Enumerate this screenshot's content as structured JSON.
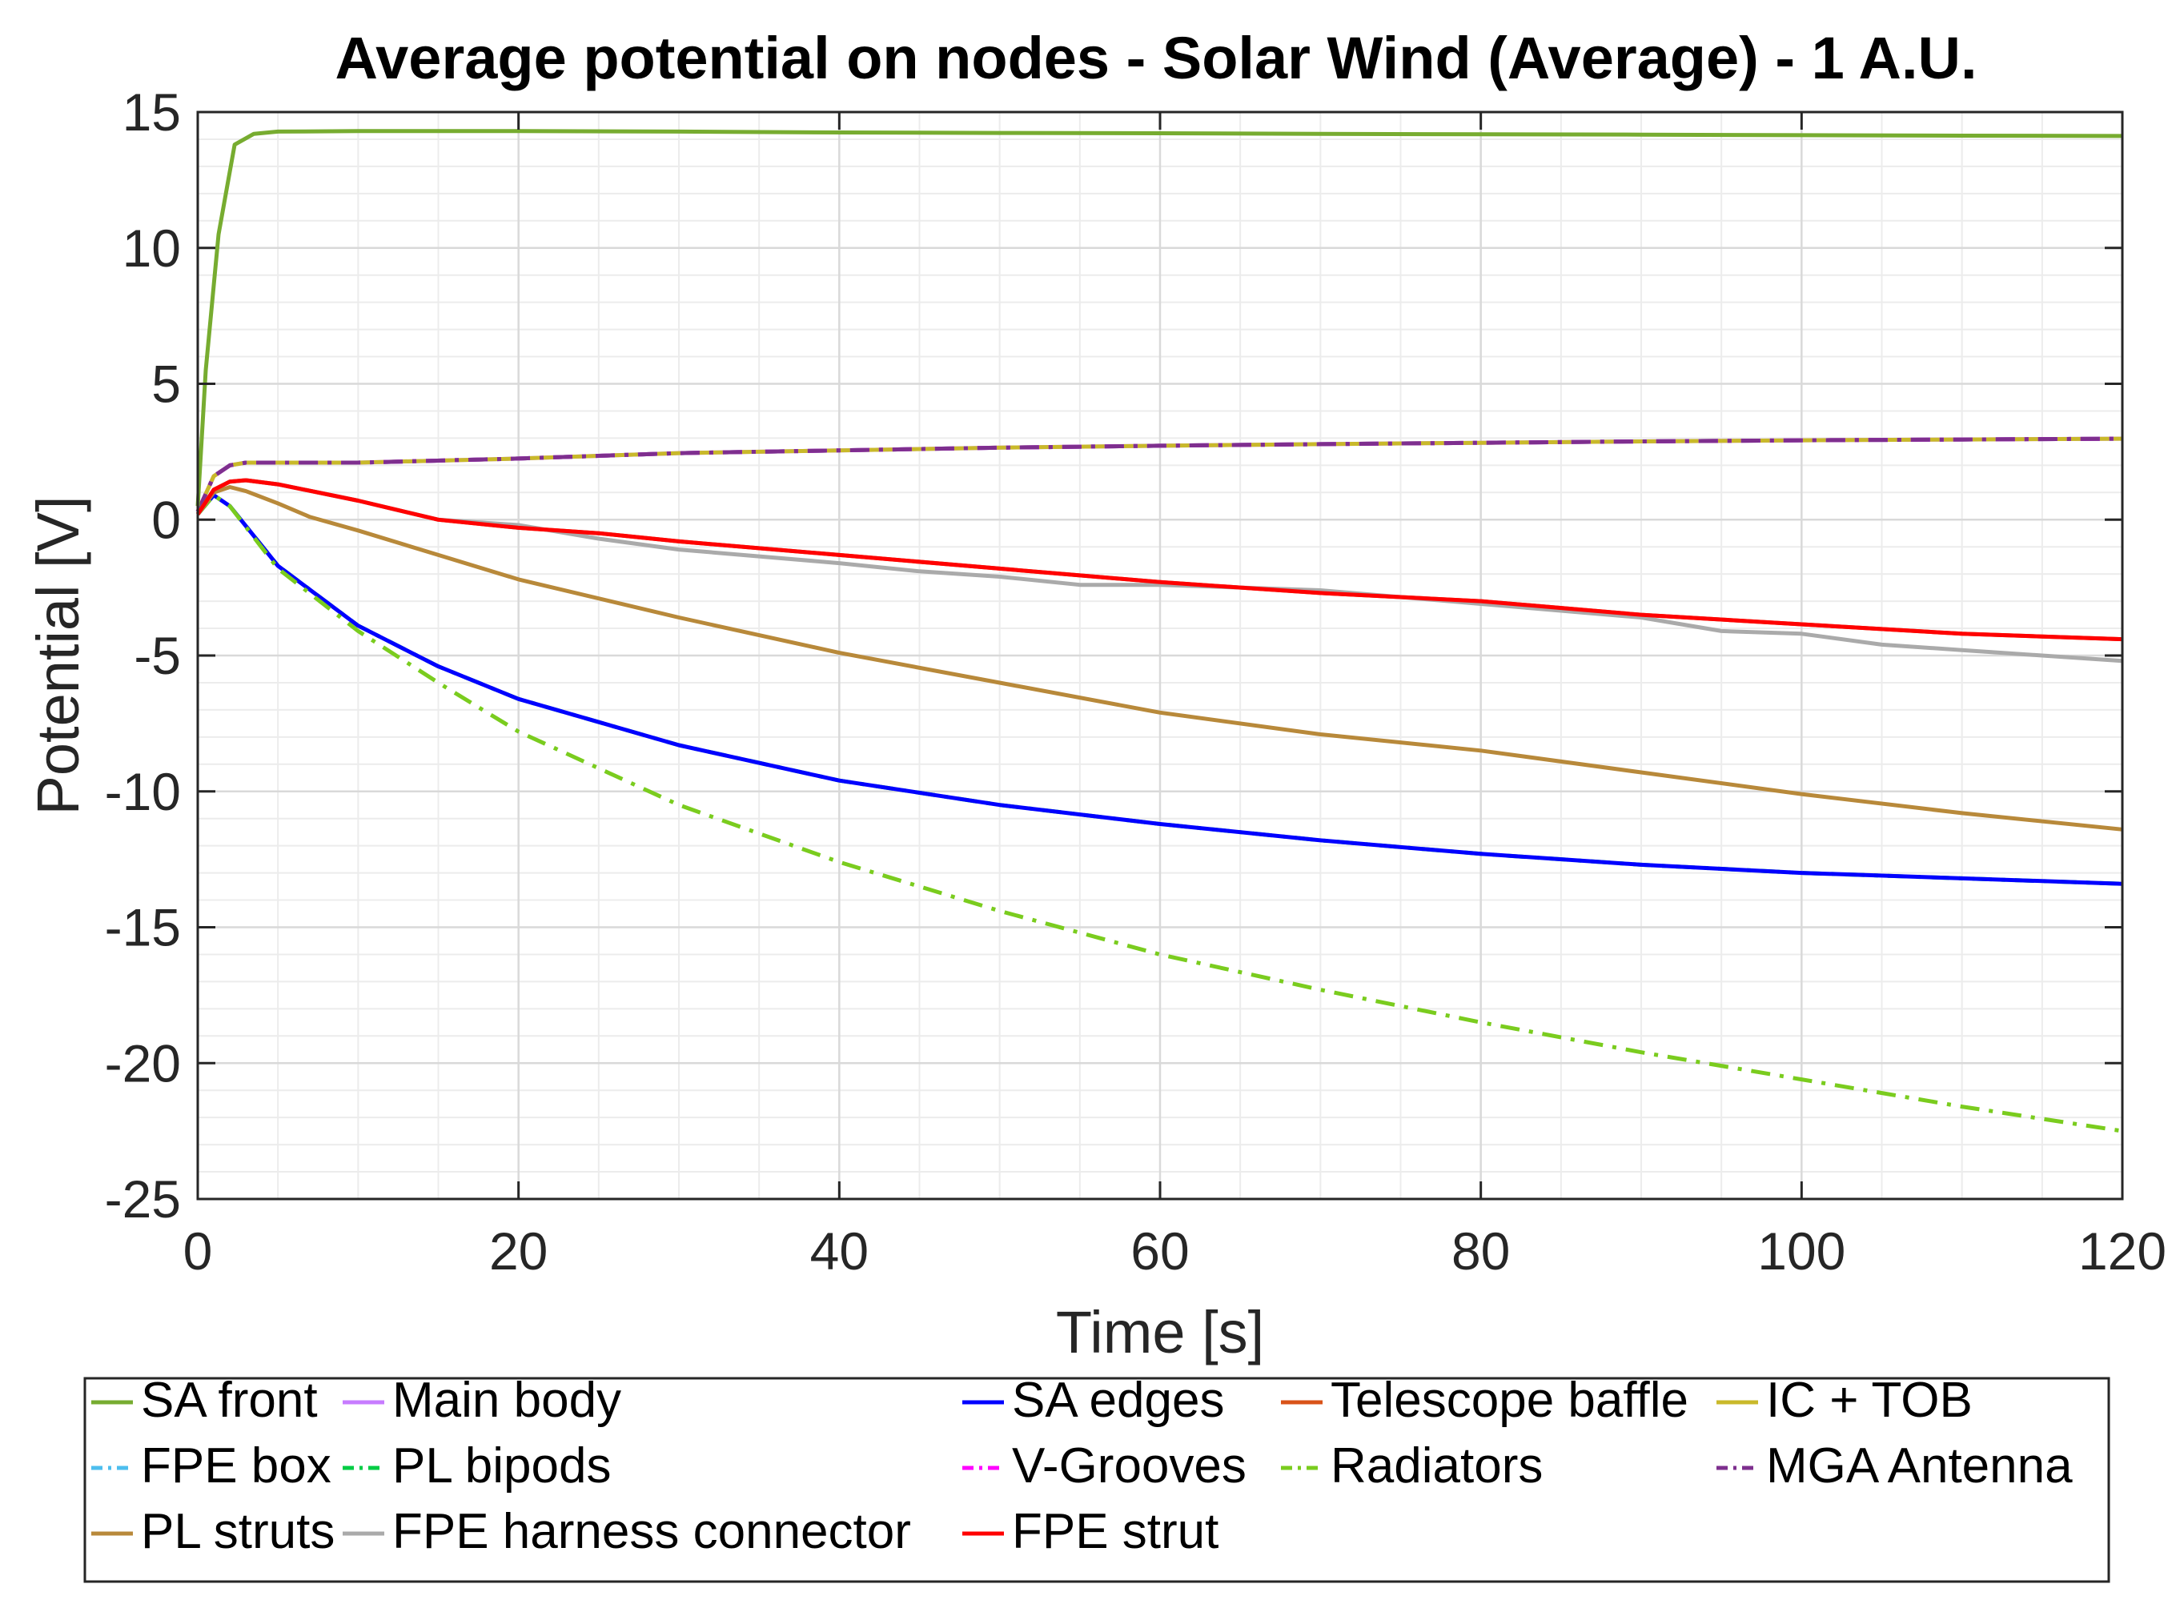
{
  "chart_data": {
    "type": "line",
    "title": "Average potential on nodes - Solar Wind (Average) - 1 A.U.",
    "xlabel": "Time [s]",
    "ylabel": "Potential [V]",
    "xlim": [
      0,
      120
    ],
    "ylim": [
      -25,
      15
    ],
    "xticks": [
      0,
      20,
      40,
      60,
      80,
      100,
      120
    ],
    "xtick_labels": [
      "0",
      "20",
      "40",
      "60",
      "80",
      "100",
      "120"
    ],
    "yticks": [
      15,
      10,
      5,
      0,
      -5,
      -10,
      -15,
      -20,
      -25
    ],
    "ytick_labels": [
      "15",
      "10",
      "5",
      "0",
      "-5",
      "-10",
      "-15",
      "-20",
      "-25"
    ],
    "grid": true,
    "minor_grid": true,
    "legend_position": "below-plot",
    "series": [
      {
        "name": "SA front",
        "color": "#77AC30",
        "dash": "solid",
        "x": [
          0,
          0.5,
          1.3,
          2.3,
          3.5,
          5,
          10,
          20,
          30,
          40,
          50,
          60,
          70,
          80,
          90,
          100,
          110,
          120
        ],
        "y": [
          0.5,
          5.5,
          10.5,
          13.8,
          14.2,
          14.28,
          14.3,
          14.3,
          14.28,
          14.25,
          14.23,
          14.22,
          14.2,
          14.18,
          14.17,
          14.15,
          14.13,
          14.12
        ]
      },
      {
        "name": "Main body",
        "color": "#C77CFF",
        "dash": "solid",
        "x": [
          0,
          1,
          2,
          3,
          5,
          10,
          20,
          30,
          40,
          50,
          60,
          70,
          80,
          90,
          100,
          110,
          120
        ],
        "y": [
          0.3,
          1.6,
          2.0,
          2.1,
          2.1,
          2.1,
          2.25,
          2.45,
          2.55,
          2.65,
          2.72,
          2.78,
          2.83,
          2.88,
          2.92,
          2.95,
          2.98
        ]
      },
      {
        "name": "SA edges",
        "color": "#0000FF",
        "dash": "solid",
        "x": [
          0,
          1,
          2,
          5,
          10,
          15,
          20,
          30,
          40,
          50,
          60,
          70,
          80,
          90,
          100,
          110,
          120
        ],
        "y": [
          0.2,
          0.9,
          0.5,
          -1.7,
          -3.9,
          -5.4,
          -6.6,
          -8.3,
          -9.6,
          -10.5,
          -11.2,
          -11.8,
          -12.3,
          -12.7,
          -13.0,
          -13.2,
          -13.4
        ]
      },
      {
        "name": "Telescope baffle",
        "color": "#D95319",
        "dash": "solid",
        "x": [
          0,
          1,
          2,
          3,
          5,
          10,
          15,
          20,
          25,
          30,
          40,
          50,
          60,
          70,
          80,
          90,
          100,
          110,
          120
        ],
        "y": [
          0.2,
          1.1,
          1.4,
          1.45,
          1.3,
          0.7,
          0.0,
          -0.3,
          -0.5,
          -0.8,
          -1.3,
          -1.8,
          -2.3,
          -2.7,
          -3.0,
          -3.5,
          -3.85,
          -4.2,
          -4.4
        ]
      },
      {
        "name": "IC + TOB",
        "color": "#C9B92A",
        "dash": "solid",
        "x": [
          0,
          1,
          2,
          3,
          5,
          10,
          20,
          30,
          40,
          50,
          60,
          70,
          80,
          90,
          100,
          110,
          120
        ],
        "y": [
          0.3,
          1.6,
          2.0,
          2.1,
          2.1,
          2.1,
          2.25,
          2.45,
          2.55,
          2.65,
          2.72,
          2.78,
          2.83,
          2.88,
          2.92,
          2.95,
          2.98
        ]
      },
      {
        "name": "FPE box",
        "color": "#4DBEEE",
        "dash": "dashdot",
        "x": [
          0,
          1,
          2,
          3,
          5,
          10,
          20,
          30,
          40,
          50,
          60,
          70,
          80,
          90,
          100,
          110,
          120
        ],
        "y": [
          0.3,
          1.6,
          2.0,
          2.1,
          2.1,
          2.1,
          2.25,
          2.45,
          2.55,
          2.65,
          2.72,
          2.78,
          2.83,
          2.88,
          2.92,
          2.95,
          2.98
        ]
      },
      {
        "name": "PL bipods",
        "color": "#00CC44",
        "dash": "dashdot",
        "x": [
          0,
          1,
          2,
          5,
          10,
          15,
          20,
          30,
          40,
          50,
          60,
          70,
          80,
          90,
          100,
          110,
          120
        ],
        "y": [
          0.2,
          0.9,
          0.5,
          -1.7,
          -3.9,
          -5.4,
          -6.6,
          -8.3,
          -9.6,
          -10.5,
          -11.2,
          -11.8,
          -12.3,
          -12.7,
          -13.0,
          -13.2,
          -13.4
        ]
      },
      {
        "name": "V-Grooves",
        "color": "#FF00FF",
        "dash": "dashdot",
        "x": [
          0,
          1,
          2,
          3,
          5,
          10,
          20,
          30,
          40,
          50,
          60,
          70,
          80,
          90,
          100,
          110,
          120
        ],
        "y": [
          0.3,
          1.6,
          2.0,
          2.1,
          2.1,
          2.1,
          2.25,
          2.45,
          2.55,
          2.65,
          2.72,
          2.78,
          2.83,
          2.88,
          2.92,
          2.95,
          2.98
        ]
      },
      {
        "name": "Radiators",
        "color": "#7ACC1E",
        "dash": "dashdot",
        "x": [
          0,
          1,
          2,
          5,
          10,
          15,
          20,
          30,
          40,
          50,
          60,
          70,
          80,
          90,
          100,
          110,
          120
        ],
        "y": [
          0.2,
          0.9,
          0.5,
          -1.8,
          -4.1,
          -6.0,
          -7.8,
          -10.5,
          -12.6,
          -14.4,
          -16.0,
          -17.3,
          -18.5,
          -19.6,
          -20.6,
          -21.6,
          -22.5
        ]
      },
      {
        "name": "MGA Antenna",
        "color": "#7E2F8E",
        "dash": "dashdot",
        "x": [
          0,
          1,
          2,
          3,
          5,
          10,
          20,
          30,
          40,
          50,
          60,
          70,
          80,
          90,
          100,
          110,
          120
        ],
        "y": [
          0.3,
          1.6,
          2.0,
          2.1,
          2.1,
          2.1,
          2.25,
          2.45,
          2.55,
          2.65,
          2.72,
          2.78,
          2.83,
          2.88,
          2.92,
          2.95,
          2.98
        ]
      },
      {
        "name": "PL struts",
        "color": "#B8893A",
        "dash": "solid",
        "x": [
          0,
          1,
          2,
          3,
          5,
          7,
          10,
          15,
          20,
          30,
          40,
          50,
          60,
          70,
          80,
          90,
          100,
          110,
          120
        ],
        "y": [
          0.2,
          1.0,
          1.2,
          1.05,
          0.6,
          0.1,
          -0.4,
          -1.3,
          -2.2,
          -3.6,
          -4.9,
          -6.0,
          -7.1,
          -7.9,
          -8.5,
          -9.3,
          -10.1,
          -10.8,
          -11.4
        ]
      },
      {
        "name": "FPE harness connector",
        "color": "#AAAAAA",
        "dash": "solid",
        "x": [
          0,
          1,
          2,
          3,
          5,
          10,
          15,
          20,
          25,
          30,
          40,
          45,
          50,
          55,
          60,
          70,
          80,
          90,
          95,
          100,
          105,
          110,
          115,
          120
        ],
        "y": [
          0.2,
          1.1,
          1.4,
          1.45,
          1.3,
          0.7,
          0.0,
          -0.2,
          -0.7,
          -1.1,
          -1.6,
          -1.9,
          -2.1,
          -2.4,
          -2.4,
          -2.6,
          -3.1,
          -3.6,
          -4.1,
          -4.2,
          -4.6,
          -4.8,
          -5.0,
          -5.2
        ]
      },
      {
        "name": "FPE strut",
        "color": "#FF0000",
        "dash": "solid",
        "x": [
          0,
          1,
          2,
          3,
          5,
          10,
          15,
          20,
          25,
          30,
          40,
          50,
          60,
          70,
          80,
          90,
          100,
          110,
          120
        ],
        "y": [
          0.2,
          1.1,
          1.4,
          1.45,
          1.3,
          0.7,
          0.0,
          -0.3,
          -0.5,
          -0.8,
          -1.3,
          -1.8,
          -2.3,
          -2.7,
          -3.0,
          -3.5,
          -3.85,
          -4.2,
          -4.4
        ]
      }
    ],
    "draw_order": [
      "Main body",
      "IC + TOB",
      "FPE box",
      "V-Grooves",
      "MGA Antenna",
      "PL bipods",
      "SA edges",
      "Radiators",
      "PL struts",
      "Telescope baffle",
      "FPE harness connector",
      "FPE strut",
      "SA front"
    ]
  }
}
